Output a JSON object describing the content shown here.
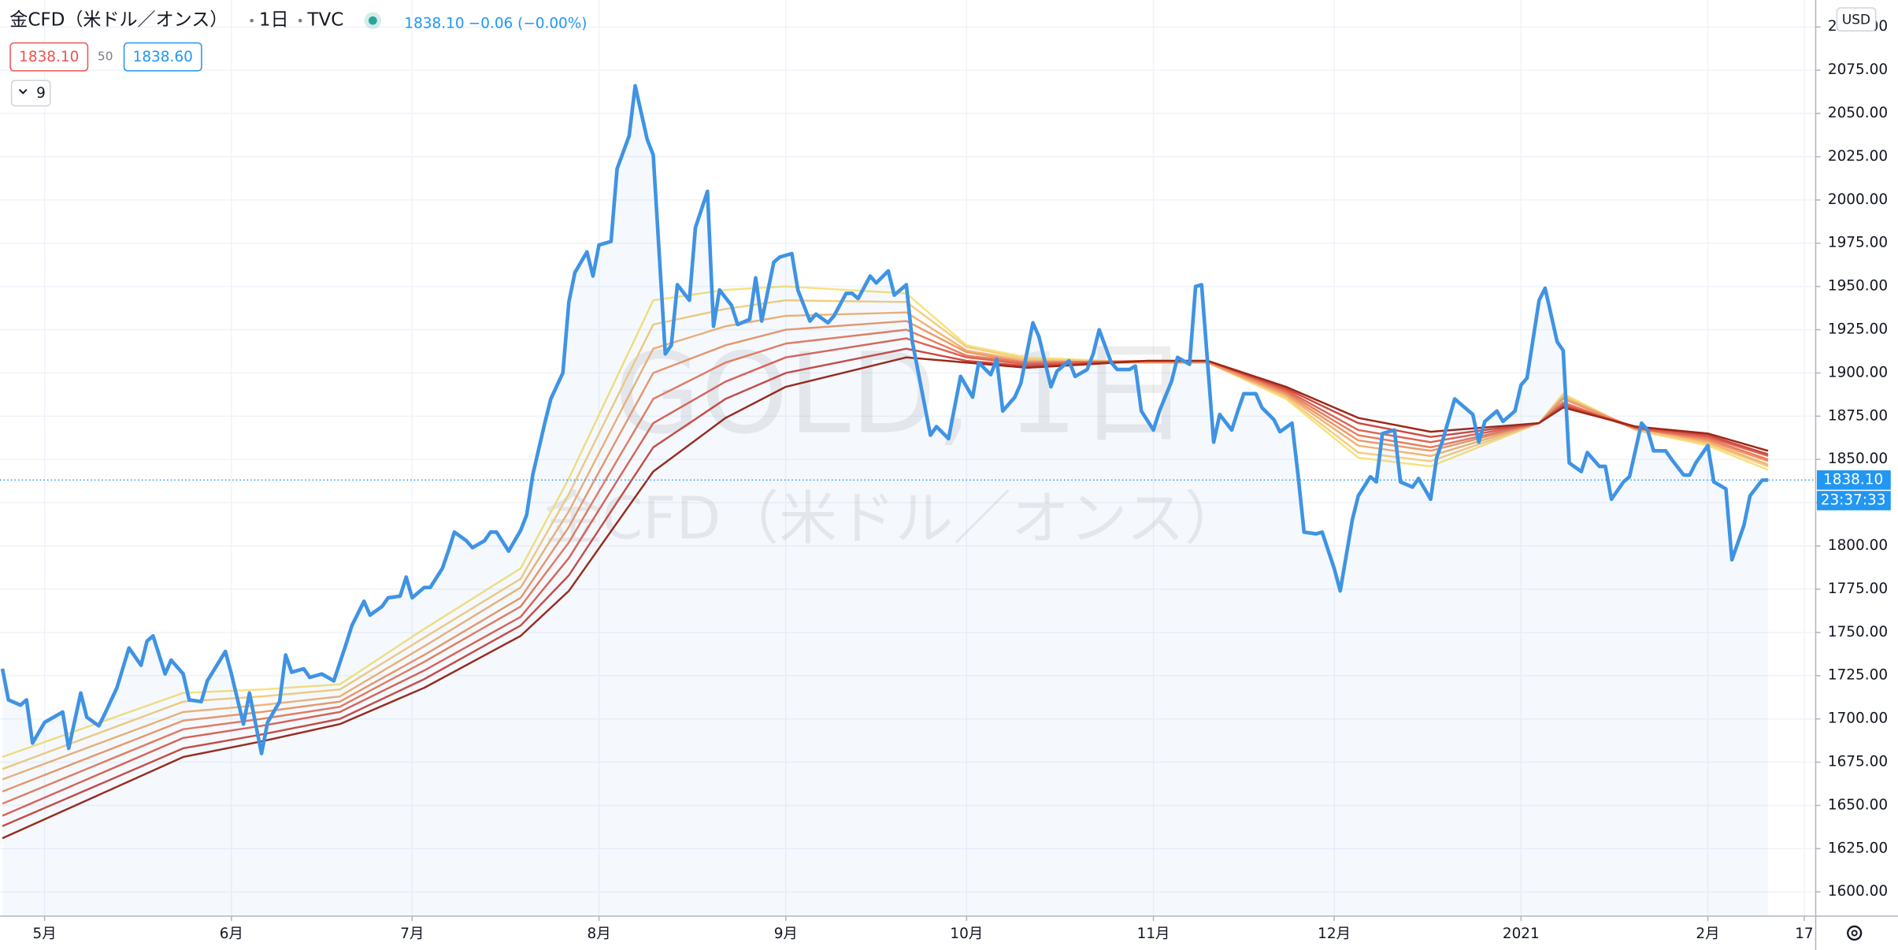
{
  "header": {
    "symbol": "金CFD（米ドル／オンス）",
    "interval": "1日",
    "exchange": "TVC",
    "price": "1838.10",
    "change": "−0.06 (−0.00%)"
  },
  "chips": {
    "bid": "1838.10",
    "spread": "50",
    "ask": "1838.60",
    "indicators": "9"
  },
  "watermark": {
    "line1": "GOLD, 1日",
    "line2": "金CFD（米ドル／オンス）"
  },
  "currency": "USD",
  "chart_data": {
    "type": "line",
    "grid": true,
    "xlim": [
      -7.4,
      293.9
    ],
    "xticks": [
      {
        "value": 0,
        "label": "5月"
      },
      {
        "value": 31,
        "label": "6月"
      },
      {
        "value": 61,
        "label": "7月"
      },
      {
        "value": 92,
        "label": "8月"
      },
      {
        "value": 123,
        "label": "9月"
      },
      {
        "value": 153,
        "label": "10月"
      },
      {
        "value": 184,
        "label": "11月"
      },
      {
        "value": 214,
        "label": "12月"
      },
      {
        "value": 245,
        "label": "2021"
      },
      {
        "value": 276,
        "label": "2月"
      },
      {
        "value": 292,
        "label": "17"
      }
    ],
    "ylim": [
      1586,
      2115.6
    ],
    "yticks": [
      {
        "value": 1600,
        "label": "1600.00"
      },
      {
        "value": 1625,
        "label": "1625.00"
      },
      {
        "value": 1650,
        "label": "1650.00"
      },
      {
        "value": 1675,
        "label": "1675.00"
      },
      {
        "value": 1700,
        "label": "1700.00"
      },
      {
        "value": 1725,
        "label": "1725.00"
      },
      {
        "value": 1750,
        "label": "1750.00"
      },
      {
        "value": 1775,
        "label": "1775.00"
      },
      {
        "value": 1800,
        "label": "1800.00"
      },
      {
        "value": 1825,
        "label": "1825.00"
      },
      {
        "value": 1850,
        "label": "1850.00"
      },
      {
        "value": 1875,
        "label": "1875.00"
      },
      {
        "value": 1900,
        "label": "1900.00"
      },
      {
        "value": 1925,
        "label": "1925.00"
      },
      {
        "value": 1950,
        "label": "1950.00"
      },
      {
        "value": 1975,
        "label": "1975.00"
      },
      {
        "value": 2000,
        "label": "2000.00"
      },
      {
        "value": 2025,
        "label": "2025.00"
      },
      {
        "value": 2050,
        "label": "2050.00"
      },
      {
        "value": 2075,
        "label": "2075.00"
      },
      {
        "value": 2100,
        "label": "2100.00"
      }
    ],
    "last_price": {
      "value": 1838.1,
      "label": "1838.10",
      "countdown": "23:37:33",
      "color": "#2196f3"
    },
    "series": [
      {
        "color": "#3f93e4",
        "area": true,
        "x": [
          -7,
          -6,
          -4,
          -3,
          -2,
          0,
          3,
          4,
          6,
          7,
          9,
          10,
          12,
          14,
          16,
          17,
          18,
          20,
          21,
          23,
          24,
          26,
          27,
          30,
          31,
          33,
          34,
          36,
          37,
          39,
          40,
          41,
          43,
          44,
          46,
          48,
          50,
          51,
          53,
          54,
          56,
          57,
          59,
          60,
          61,
          63,
          64,
          66,
          67,
          68,
          70,
          71,
          73,
          74,
          75,
          77,
          79,
          80,
          81,
          83,
          84,
          86,
          87,
          88,
          90,
          91,
          92,
          94,
          95,
          97,
          98,
          100,
          101,
          103,
          104,
          105,
          107,
          108,
          110,
          111,
          112,
          114,
          115,
          117,
          118,
          119,
          121,
          122,
          124,
          125,
          127,
          128,
          130,
          131,
          133,
          134,
          135,
          137,
          138,
          140,
          141,
          143,
          144,
          145,
          147,
          148,
          150,
          151,
          152,
          154,
          155,
          157,
          158,
          159,
          161,
          162,
          164,
          165,
          167,
          168,
          170,
          171,
          173,
          174,
          175,
          177,
          178,
          180,
          181,
          182,
          184,
          185,
          187,
          188,
          190,
          191,
          192,
          194,
          195,
          197,
          198,
          199,
          201,
          202,
          204,
          205,
          207,
          208,
          209,
          211,
          212,
          214,
          215,
          217,
          218,
          220,
          221,
          222,
          224,
          225,
          227,
          228,
          230,
          231,
          232,
          234,
          235,
          237,
          238,
          239,
          241,
          242,
          244,
          245,
          246,
          248,
          249,
          251,
          252,
          253,
          255,
          256,
          258,
          259,
          260,
          262,
          263,
          265,
          266,
          267,
          269,
          270,
          272,
          273,
          274,
          276,
          277,
          279,
          280,
          282,
          283,
          285,
          286
        ],
        "values": [
          1729,
          1711,
          1708,
          1711,
          1686,
          1698,
          1704,
          1683,
          1715,
          1701,
          1696,
          1703,
          1718,
          1741,
          1731,
          1745,
          1748,
          1726,
          1734,
          1726,
          1711,
          1710,
          1722,
          1739,
          1726,
          1697,
          1715,
          1680,
          1698,
          1710,
          1737,
          1727,
          1729,
          1724,
          1726,
          1722,
          1743,
          1754,
          1768,
          1760,
          1765,
          1770,
          1771,
          1782,
          1770,
          1776,
          1776,
          1787,
          1797,
          1808,
          1803,
          1799,
          1803,
          1808,
          1808,
          1797,
          1809,
          1818,
          1841,
          1871,
          1885,
          1900,
          1941,
          1958,
          1970,
          1956,
          1974,
          1976,
          2018,
          2037,
          2066,
          2035,
          2026,
          1911,
          1916,
          1951,
          1942,
          1984,
          2005,
          1927,
          1948,
          1939,
          1928,
          1931,
          1955,
          1930,
          1964,
          1967,
          1969,
          1948,
          1930,
          1934,
          1929,
          1933,
          1946,
          1946,
          1943,
          1956,
          1952,
          1959,
          1945,
          1951,
          1918,
          1900,
          1864,
          1869,
          1862,
          1880,
          1898,
          1886,
          1906,
          1899,
          1908,
          1878,
          1886,
          1894,
          1929,
          1921,
          1892,
          1901,
          1907,
          1898,
          1902,
          1911,
          1925,
          1906,
          1902,
          1902,
          1904,
          1878,
          1867,
          1878,
          1895,
          1909,
          1905,
          1950,
          1951,
          1860,
          1876,
          1867,
          1878,
          1888,
          1888,
          1880,
          1873,
          1866,
          1871,
          1841,
          1808,
          1807,
          1808,
          1787,
          1774,
          1815,
          1829,
          1840,
          1837,
          1865,
          1867,
          1837,
          1834,
          1839,
          1827,
          1851,
          1861,
          1885,
          1882,
          1876,
          1860,
          1872,
          1878,
          1872,
          1878,
          1893,
          1897,
          1942,
          1949,
          1918,
          1913,
          1848,
          1843,
          1854,
          1846,
          1846,
          1827,
          1837,
          1840,
          1871,
          1867,
          1855,
          1855,
          1850,
          1841,
          1841,
          1848,
          1858,
          1837,
          1833,
          1792,
          1812,
          1829,
          1838,
          1838.1
        ]
      },
      {
        "color": "#f7e27c",
        "x": [
          -7,
          23,
          36,
          49,
          63,
          79,
          87,
          101,
          113,
          123,
          143,
          153,
          163,
          183,
          193,
          206,
          218,
          230,
          248,
          252,
          264,
          276,
          286
        ],
        "values": [
          1678,
          1715,
          1717,
          1720,
          1752,
          1787,
          1839,
          1942,
          1948,
          1950,
          1946,
          1916,
          1909,
          1906,
          1906,
          1885,
          1851,
          1846,
          1871,
          1888,
          1867,
          1858,
          1844
        ]
      },
      {
        "color": "#f5cd80",
        "x": [
          -7,
          23,
          36,
          49,
          63,
          79,
          87,
          101,
          113,
          123,
          143,
          153,
          163,
          183,
          193,
          206,
          218,
          230,
          248,
          252,
          264,
          276,
          286
        ],
        "values": [
          1671,
          1710,
          1713,
          1717,
          1747,
          1781,
          1830,
          1928,
          1937,
          1942,
          1941,
          1915,
          1908,
          1906,
          1906,
          1886,
          1854,
          1849,
          1871,
          1887,
          1867,
          1859,
          1846
        ]
      },
      {
        "color": "#f2b374",
        "x": [
          -7,
          23,
          36,
          49,
          63,
          79,
          87,
          101,
          113,
          123,
          143,
          153,
          163,
          183,
          193,
          206,
          218,
          230,
          248,
          252,
          264,
          276,
          286
        ],
        "values": [
          1665,
          1704,
          1708,
          1713,
          1742,
          1776,
          1820,
          1914,
          1927,
          1933,
          1935,
          1913,
          1907,
          1906,
          1906,
          1887,
          1858,
          1852,
          1871,
          1886,
          1868,
          1860,
          1847
        ]
      },
      {
        "color": "#ee9868",
        "x": [
          -7,
          23,
          36,
          49,
          63,
          79,
          87,
          101,
          113,
          123,
          143,
          153,
          163,
          183,
          193,
          206,
          218,
          230,
          248,
          252,
          264,
          276,
          286
        ],
        "values": [
          1658,
          1699,
          1704,
          1710,
          1737,
          1770,
          1811,
          1900,
          1916,
          1925,
          1930,
          1912,
          1906,
          1906,
          1906,
          1888,
          1861,
          1855,
          1871,
          1885,
          1868,
          1861,
          1849
        ]
      },
      {
        "color": "#e87d5d",
        "x": [
          -7,
          23,
          36,
          49,
          63,
          79,
          87,
          101,
          113,
          123,
          143,
          153,
          163,
          183,
          193,
          206,
          218,
          230,
          248,
          252,
          264,
          276,
          286
        ],
        "values": [
          1651,
          1694,
          1700,
          1707,
          1733,
          1765,
          1802,
          1885,
          1906,
          1917,
          1925,
          1910,
          1906,
          1907,
          1907,
          1889,
          1864,
          1857,
          1871,
          1883,
          1868,
          1862,
          1850
        ]
      },
      {
        "color": "#df6352",
        "x": [
          -7,
          23,
          36,
          49,
          63,
          79,
          87,
          101,
          113,
          123,
          143,
          153,
          163,
          183,
          193,
          206,
          218,
          230,
          248,
          252,
          264,
          276,
          286
        ],
        "values": [
          1644,
          1689,
          1696,
          1704,
          1728,
          1759,
          1793,
          1871,
          1895,
          1909,
          1920,
          1909,
          1905,
          1907,
          1907,
          1890,
          1867,
          1860,
          1871,
          1882,
          1868,
          1863,
          1852
        ]
      },
      {
        "color": "#cc4a40",
        "x": [
          -7,
          23,
          36,
          49,
          63,
          79,
          87,
          101,
          113,
          123,
          143,
          153,
          163,
          183,
          193,
          206,
          218,
          230,
          248,
          252,
          264,
          276,
          286
        ],
        "values": [
          1638,
          1683,
          1691,
          1700,
          1723,
          1754,
          1783,
          1857,
          1885,
          1900,
          1914,
          1907,
          1904,
          1907,
          1907,
          1891,
          1871,
          1863,
          1871,
          1881,
          1869,
          1864,
          1853
        ]
      },
      {
        "color": "#9e2614",
        "x": [
          -7,
          23,
          36,
          49,
          63,
          79,
          87,
          101,
          113,
          123,
          143,
          153,
          163,
          183,
          193,
          206,
          218,
          230,
          248,
          252,
          264,
          276,
          286
        ],
        "values": [
          1631,
          1678,
          1687,
          1697,
          1718,
          1748,
          1774,
          1843,
          1874,
          1892,
          1909,
          1906,
          1903,
          1907,
          1907,
          1892,
          1874,
          1866,
          1871,
          1880,
          1869,
          1865,
          1855
        ]
      }
    ]
  }
}
